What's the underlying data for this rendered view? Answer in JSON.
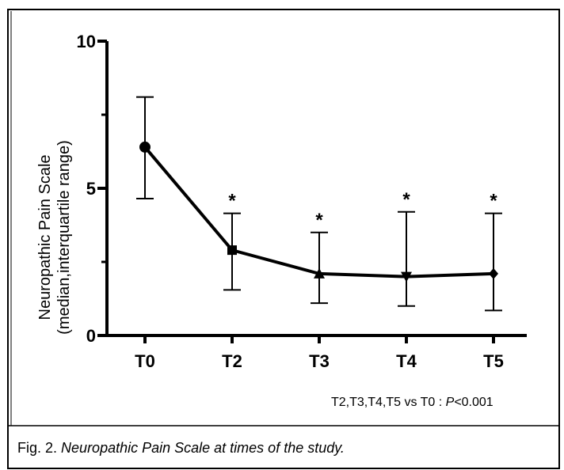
{
  "chart_data": {
    "type": "line",
    "ylabel": [
      "Neuropathic Pain Scale",
      "(median,interquartile range)"
    ],
    "categories": [
      "T0",
      "T2",
      "T3",
      "T4",
      "T5"
    ],
    "series": [
      {
        "color": "#000000",
        "values": [
          6.4,
          2.9,
          2.1,
          2.0,
          2.1
        ],
        "lower": [
          4.65,
          1.55,
          1.1,
          1.0,
          0.85
        ],
        "upper": [
          8.1,
          4.15,
          3.5,
          4.2,
          4.15
        ]
      }
    ],
    "markers": [
      "circle",
      "square",
      "triangle-up",
      "triangle-down",
      "diamond"
    ],
    "significance": [
      null,
      "*",
      "*",
      "*",
      "*"
    ],
    "ylim": [
      0,
      10
    ],
    "yticks": [
      0,
      5,
      10
    ],
    "yminor_ticks": [
      2.5,
      7.5
    ],
    "note": {
      "text": "T2,T3,T4,T5 vs T0 : ",
      "p": "P",
      "value": "<0.001"
    }
  },
  "caption": {
    "label": "Fig. 2.",
    "text": "Neuropathic Pain Scale at times of the study."
  }
}
